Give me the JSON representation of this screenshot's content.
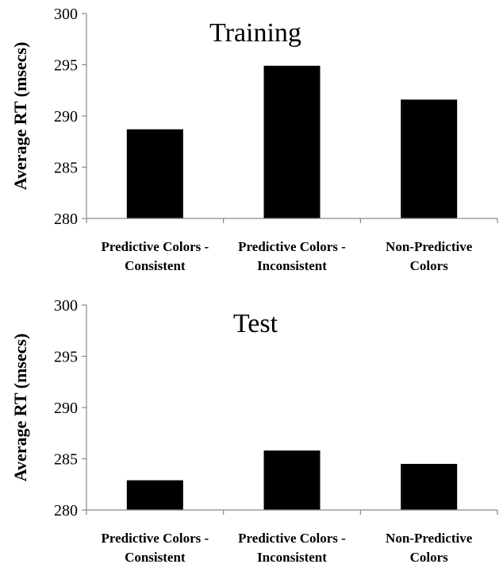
{
  "chart_data": [
    {
      "type": "bar",
      "title": "Training",
      "xlabel": "",
      "ylabel": "Average RT (msecs)",
      "ylim": [
        280,
        300
      ],
      "yticks": [
        280,
        285,
        290,
        295,
        300
      ],
      "categories": [
        [
          "Predictive Colors -",
          "Consistent"
        ],
        [
          "Predictive Colors -",
          "Inconsistent"
        ],
        [
          "Non-Predictive",
          "Colors"
        ]
      ],
      "values": [
        288.7,
        294.9,
        291.6
      ],
      "bar_color": "#000000",
      "grid": false,
      "legend": "none"
    },
    {
      "type": "bar",
      "title": "Test",
      "xlabel": "",
      "ylabel": "Average RT (msecs)",
      "ylim": [
        280,
        300
      ],
      "yticks": [
        280,
        285,
        290,
        295,
        300
      ],
      "categories": [
        [
          "Predictive Colors -",
          "Consistent"
        ],
        [
          "Predictive Colors -",
          "Inconsistent"
        ],
        [
          "Non-Predictive",
          "Colors"
        ]
      ],
      "values": [
        282.9,
        285.8,
        284.5
      ],
      "bar_color": "#000000",
      "grid": false,
      "legend": "none"
    }
  ]
}
